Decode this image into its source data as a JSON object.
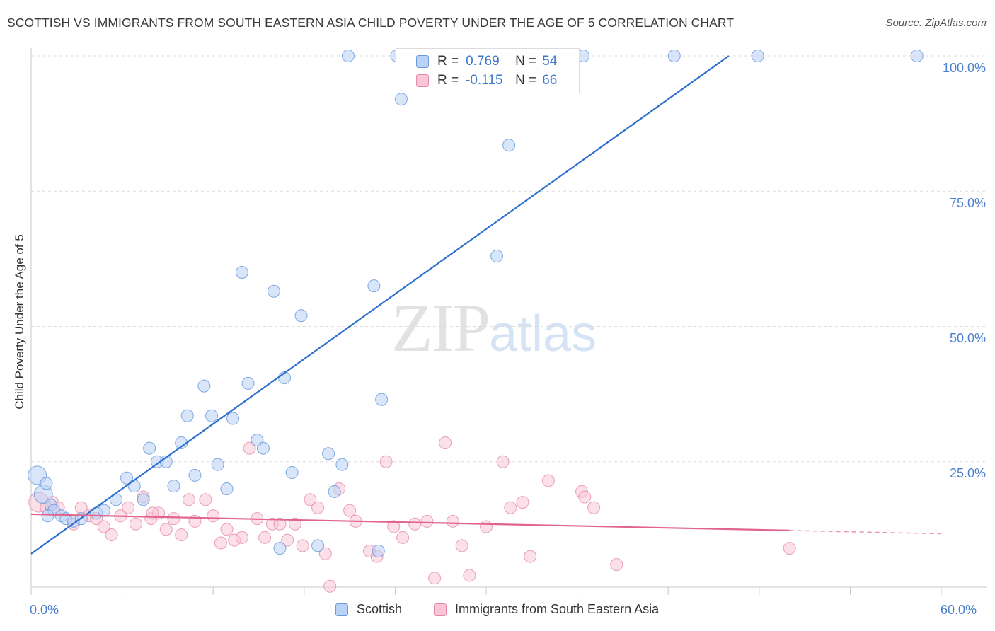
{
  "header": {
    "title": "SCOTTISH VS IMMIGRANTS FROM SOUTH EASTERN ASIA CHILD POVERTY UNDER THE AGE OF 5 CORRELATION CHART",
    "source": "Source: ZipAtlas.com"
  },
  "watermark": {
    "zip": "ZIP",
    "atlas": "atlas"
  },
  "legend_top": {
    "row1": {
      "r_label": "R =",
      "r_value": "0.769",
      "n_label": "N =",
      "n_value": "54"
    },
    "row2": {
      "r_label": "R =",
      "r_value": "-0.115",
      "n_label": "N =",
      "n_value": "66"
    }
  },
  "legend_bottom": {
    "series1": "Scottish",
    "series2": "Immigrants from South Eastern Asia"
  },
  "chart_data": {
    "type": "scatter",
    "title": "SCOTTISH VS IMMIGRANTS FROM SOUTH EASTERN ASIA CHILD POVERTY UNDER THE AGE OF 5 CORRELATION CHART",
    "ylabel": "Child Poverty Under the Age of 5",
    "xlabel": "",
    "xlim": [
      0,
      60
    ],
    "ylim": [
      0,
      100
    ],
    "x_tick_labels": [
      "0.0%",
      "60.0%"
    ],
    "y_tick_labels": [
      "100.0%",
      "75.0%",
      "50.0%",
      "25.0%"
    ],
    "y_ticks": [
      100,
      75,
      50,
      25
    ],
    "grid": true,
    "legend_position": "top-center",
    "colors": {
      "scottish": "#6a9ade",
      "scottish_fill": "#b9d2f5",
      "immigrants": "#e58aa8",
      "immigrants_fill": "#f8c6d6",
      "trend_blue": "#2d6fcc",
      "trend_pink": "#e0648c"
    },
    "series": [
      {
        "name": "Scottish",
        "r": 0.769,
        "n": 54,
        "trend": {
          "x0": 0,
          "y0": 8,
          "x1": 46,
          "y1": 100
        },
        "points": [
          [
            0.4,
            22.5
          ],
          [
            0.8,
            19
          ],
          [
            1.0,
            21
          ],
          [
            1.3,
            17
          ],
          [
            1.5,
            16
          ],
          [
            2.0,
            15
          ],
          [
            2.3,
            14.5
          ],
          [
            2.8,
            14
          ],
          [
            3.3,
            14.5
          ],
          [
            4.3,
            15.5
          ],
          [
            4.8,
            16
          ],
          [
            5.6,
            18
          ],
          [
            6.3,
            22
          ],
          [
            6.8,
            20.5
          ],
          [
            7.4,
            18
          ],
          [
            7.8,
            27.5
          ],
          [
            8.3,
            25
          ],
          [
            8.9,
            25
          ],
          [
            9.4,
            20.5
          ],
          [
            9.9,
            28.5
          ],
          [
            10.3,
            33.5
          ],
          [
            10.8,
            22.5
          ],
          [
            11.4,
            39
          ],
          [
            11.9,
            33.5
          ],
          [
            12.3,
            24.5
          ],
          [
            12.9,
            20
          ],
          [
            13.3,
            33
          ],
          [
            13.9,
            60
          ],
          [
            14.3,
            39.5
          ],
          [
            14.9,
            29
          ],
          [
            15.3,
            27.5
          ],
          [
            16.0,
            56.5
          ],
          [
            16.4,
            9
          ],
          [
            16.7,
            40.5
          ],
          [
            17.2,
            23
          ],
          [
            17.8,
            52
          ],
          [
            18.9,
            9.5
          ],
          [
            19.6,
            26.5
          ],
          [
            20.0,
            19.5
          ],
          [
            20.5,
            24.5
          ],
          [
            20.9,
            100
          ],
          [
            22.6,
            57.5
          ],
          [
            23.1,
            36.5
          ],
          [
            22.9,
            8.5
          ],
          [
            24.1,
            100
          ],
          [
            24.4,
            92
          ],
          [
            30.7,
            63
          ],
          [
            31.5,
            83.5
          ],
          [
            33.9,
            100
          ],
          [
            36.4,
            100
          ],
          [
            42.4,
            100
          ],
          [
            47.9,
            100
          ],
          [
            58.4,
            100
          ],
          [
            1.1,
            15
          ]
        ]
      },
      {
        "name": "Immigrants from South Eastern Asia",
        "r": -0.115,
        "n": 66,
        "trend": {
          "x0": 0,
          "y0": 15.3,
          "x1": 50,
          "y1": 12.3
        },
        "points": [
          [
            0.5,
            17.5
          ],
          [
            1.0,
            16.5
          ],
          [
            1.4,
            17.5
          ],
          [
            2.8,
            13.5
          ],
          [
            3.3,
            16.5
          ],
          [
            3.8,
            15
          ],
          [
            4.3,
            14.5
          ],
          [
            4.8,
            13
          ],
          [
            5.3,
            11.5
          ],
          [
            5.9,
            15
          ],
          [
            6.4,
            16.5
          ],
          [
            6.9,
            13.5
          ],
          [
            7.4,
            18.5
          ],
          [
            7.9,
            14.5
          ],
          [
            8.4,
            15.5
          ],
          [
            8.9,
            12.5
          ],
          [
            9.4,
            14.5
          ],
          [
            9.9,
            11.5
          ],
          [
            10.4,
            18
          ],
          [
            10.8,
            14
          ],
          [
            11.5,
            18
          ],
          [
            12.0,
            15
          ],
          [
            12.5,
            10
          ],
          [
            12.9,
            12.5
          ],
          [
            13.4,
            10.5
          ],
          [
            13.9,
            11
          ],
          [
            14.4,
            27.5
          ],
          [
            14.9,
            14.5
          ],
          [
            15.4,
            11
          ],
          [
            15.9,
            13.5
          ],
          [
            16.4,
            13.5
          ],
          [
            16.9,
            10.5
          ],
          [
            17.4,
            13.5
          ],
          [
            17.9,
            9.5
          ],
          [
            18.4,
            18
          ],
          [
            18.9,
            16.5
          ],
          [
            19.4,
            8
          ],
          [
            19.7,
            2
          ],
          [
            20.3,
            20
          ],
          [
            21.0,
            16
          ],
          [
            21.4,
            14
          ],
          [
            22.3,
            8.5
          ],
          [
            22.8,
            7.5
          ],
          [
            23.4,
            25
          ],
          [
            23.9,
            13
          ],
          [
            24.5,
            11
          ],
          [
            25.3,
            13.5
          ],
          [
            26.1,
            14
          ],
          [
            26.6,
            3.5
          ],
          [
            27.3,
            28.5
          ],
          [
            27.8,
            14
          ],
          [
            28.4,
            9.5
          ],
          [
            28.9,
            4
          ],
          [
            30.0,
            13
          ],
          [
            31.1,
            25
          ],
          [
            31.6,
            16.5
          ],
          [
            32.4,
            17.5
          ],
          [
            32.9,
            7.5
          ],
          [
            34.1,
            21.5
          ],
          [
            36.3,
            19.5
          ],
          [
            36.5,
            18.5
          ],
          [
            37.1,
            16.5
          ],
          [
            38.6,
            6
          ],
          [
            50.0,
            9
          ],
          [
            1.8,
            16.5
          ],
          [
            8.0,
            15.5
          ]
        ]
      }
    ]
  }
}
